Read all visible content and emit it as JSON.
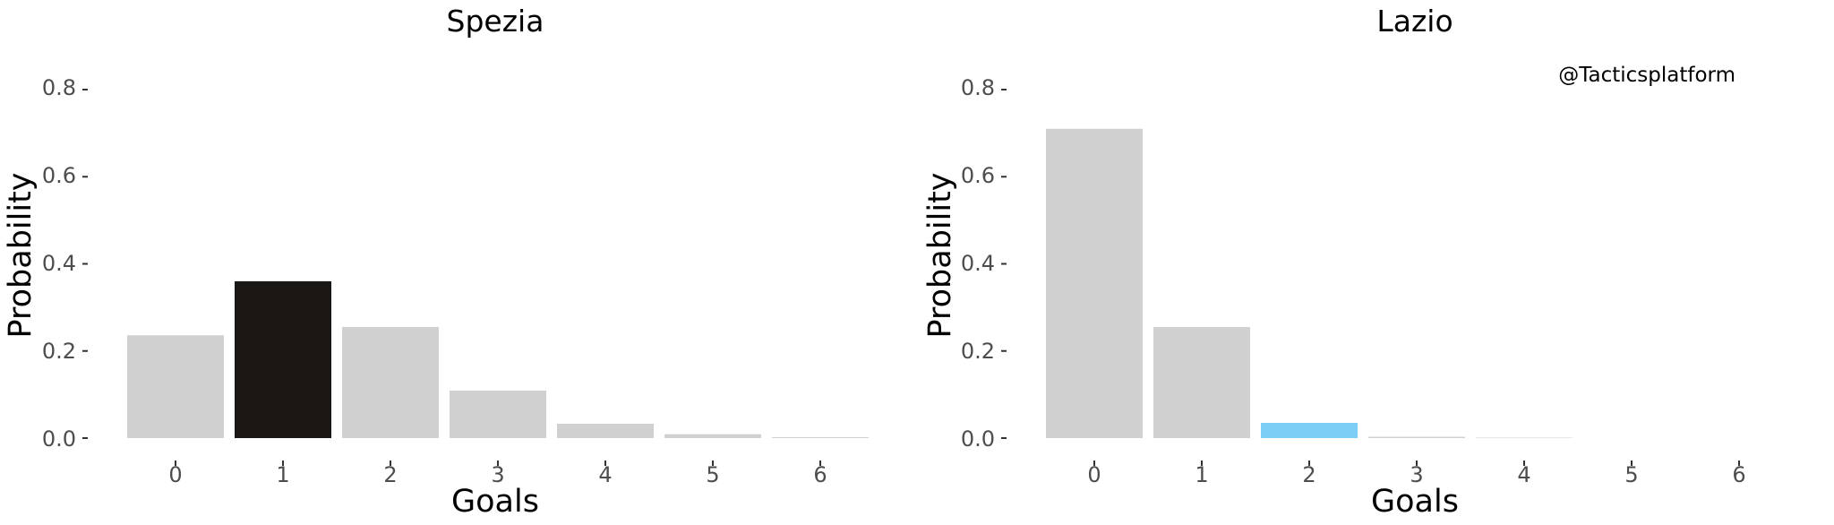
{
  "chart_data": [
    {
      "type": "bar",
      "title": "Spezia",
      "xlabel": "Goals",
      "ylabel": "Probability",
      "categories": [
        "0",
        "1",
        "2",
        "3",
        "4",
        "5",
        "6"
      ],
      "values": [
        0.236,
        0.36,
        0.255,
        0.109,
        0.033,
        0.009,
        0.002
      ],
      "highlight_index": 1,
      "bar_color": "#d0d0d0",
      "highlight_color": "#1a1714",
      "ylim": [
        0,
        0.8
      ],
      "yticks": [
        "0.0",
        "0.2",
        "0.4",
        "0.6",
        "0.8"
      ],
      "grid": false
    },
    {
      "type": "bar",
      "title": "Lazio",
      "xlabel": "Goals",
      "ylabel": "Probability",
      "categories": [
        "0",
        "1",
        "2",
        "3",
        "4",
        "5",
        "6"
      ],
      "values": [
        0.71,
        0.255,
        0.035,
        0.003,
        0.001,
        0.0,
        0.0
      ],
      "highlight_index": 2,
      "bar_color": "#d0d0d0",
      "highlight_color": "#7ccdf5",
      "ylim": [
        0,
        0.8
      ],
      "yticks": [
        "0.0",
        "0.2",
        "0.4",
        "0.6",
        "0.8"
      ],
      "grid": false,
      "annotation": "@Tacticsplatform"
    }
  ]
}
